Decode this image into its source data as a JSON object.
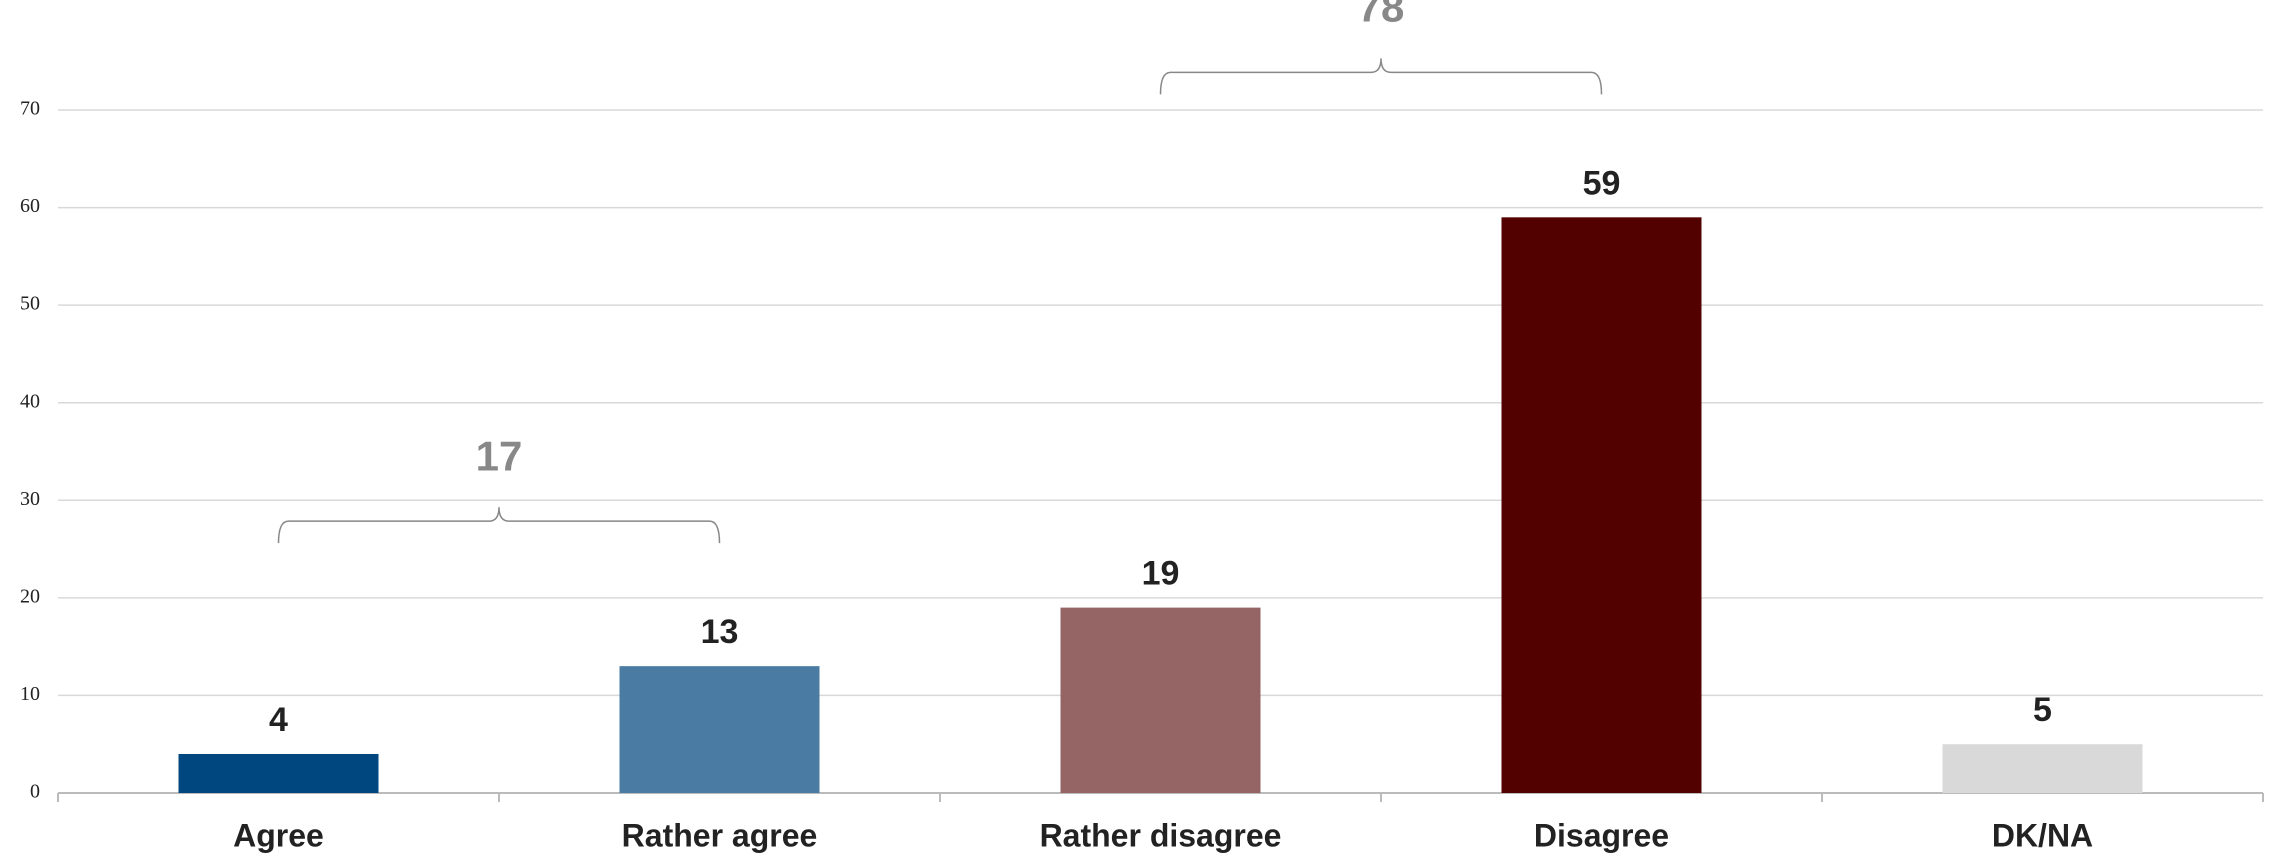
{
  "chart_data": {
    "type": "bar",
    "categories": [
      "Agree",
      "Rather agree",
      "Rather disagree",
      "Disagree",
      "DK/NA"
    ],
    "values": [
      4,
      13,
      19,
      59,
      5
    ],
    "colors": [
      "#00477f",
      "#4a7ba3",
      "#956464",
      "#520000",
      "#d9d9d9"
    ],
    "ylim": [
      0,
      70
    ],
    "yticks": [
      0,
      10,
      20,
      30,
      40,
      50,
      60,
      70
    ],
    "grid": true,
    "groups": [
      {
        "value": 17,
        "categories": [
          "Agree",
          "Rather agree"
        ]
      },
      {
        "value": 78,
        "categories": [
          "Rather disagree",
          "Disagree"
        ]
      }
    ]
  }
}
